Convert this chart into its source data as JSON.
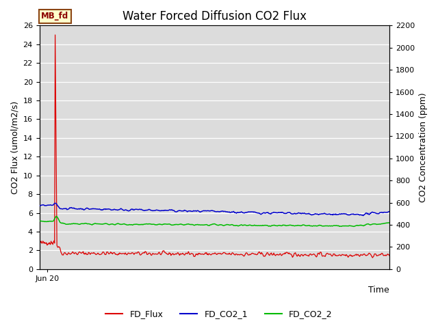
{
  "title": "Water Forced Diffusion CO2 Flux",
  "ylabel_left": "CO2 Flux (umol/m2/s)",
  "ylabel_right": "CO2 Concentration (ppm)",
  "xlabel": "Time",
  "ylim_left": [
    0,
    26
  ],
  "ylim_right": [
    0,
    2200
  ],
  "yticks_left": [
    0,
    2,
    4,
    6,
    8,
    10,
    12,
    14,
    16,
    18,
    20,
    22,
    24,
    26
  ],
  "yticks_right": [
    0,
    200,
    400,
    600,
    800,
    1000,
    1200,
    1400,
    1600,
    1800,
    2000,
    2200
  ],
  "xtick_label": "Jun 20",
  "annotation_text": "MB_fd",
  "annotation_bg": "#ffffcc",
  "annotation_border": "#8b4513",
  "line_colors": [
    "#dd0000",
    "#0000cc",
    "#00bb00"
  ],
  "legend_labels": [
    "FD_Flux",
    "FD_CO2_1",
    "FD_CO2_2"
  ],
  "plot_bg": "#dcdcdc",
  "fig_bg": "#ffffff",
  "title_fontsize": 12,
  "axis_label_fontsize": 9,
  "tick_fontsize": 8,
  "n_points": 600
}
